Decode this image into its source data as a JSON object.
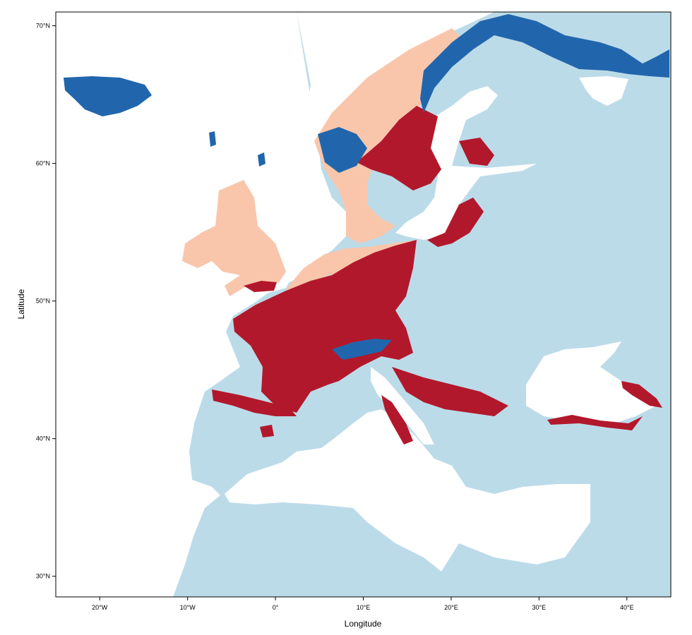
{
  "map": {
    "xlabel": "Longitude",
    "ylabel": "Latitude",
    "x_range_deg": [
      -25,
      45
    ],
    "y_range_deg": [
      28.5,
      71
    ],
    "x_ticks": [
      {
        "value": -20,
        "label": "20°W"
      },
      {
        "value": -10,
        "label": "10°W"
      },
      {
        "value": 0,
        "label": "0°"
      },
      {
        "value": 10,
        "label": "10°E"
      },
      {
        "value": 20,
        "label": "20°E"
      },
      {
        "value": 30,
        "label": "30°E"
      },
      {
        "value": 40,
        "label": "40°E"
      }
    ],
    "y_ticks": [
      {
        "value": 30,
        "label": "30°N"
      },
      {
        "value": 40,
        "label": "40°N"
      },
      {
        "value": 50,
        "label": "50°N"
      },
      {
        "value": 60,
        "label": "60°N"
      },
      {
        "value": 70,
        "label": "70°N"
      }
    ],
    "colors": {
      "background_land": "#bcdbe9",
      "water": "#ffffff",
      "dark_red": "#b2182b",
      "light_salmon": "#f9c6ab",
      "dark_blue": "#2166ac"
    }
  }
}
